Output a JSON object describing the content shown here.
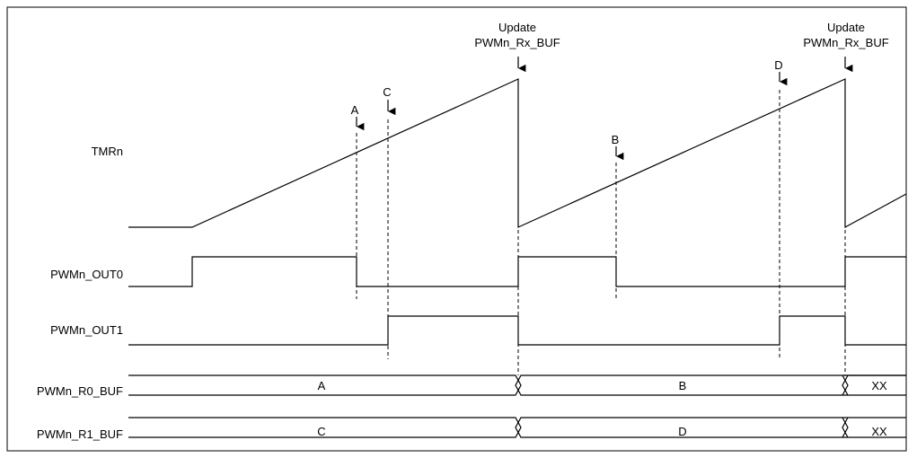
{
  "signals": {
    "tmr": "TMRn",
    "out0": "PWMn_OUT0",
    "out1": "PWMn_OUT1",
    "r0": "PWMn_R0_BUF",
    "r1": "PWMn_R1_BUF"
  },
  "update_labels": [
    {
      "line1": "Update",
      "line2": "PWMn_Rx_BUF"
    },
    {
      "line1": "Update",
      "line2": "PWMn_Rx_BUF"
    }
  ],
  "markers": {
    "a": "A",
    "b": "B",
    "c": "C",
    "d": "D"
  },
  "buses": {
    "r0": [
      "A",
      "B",
      "XX"
    ],
    "r1": [
      "C",
      "D",
      "XX"
    ]
  }
}
